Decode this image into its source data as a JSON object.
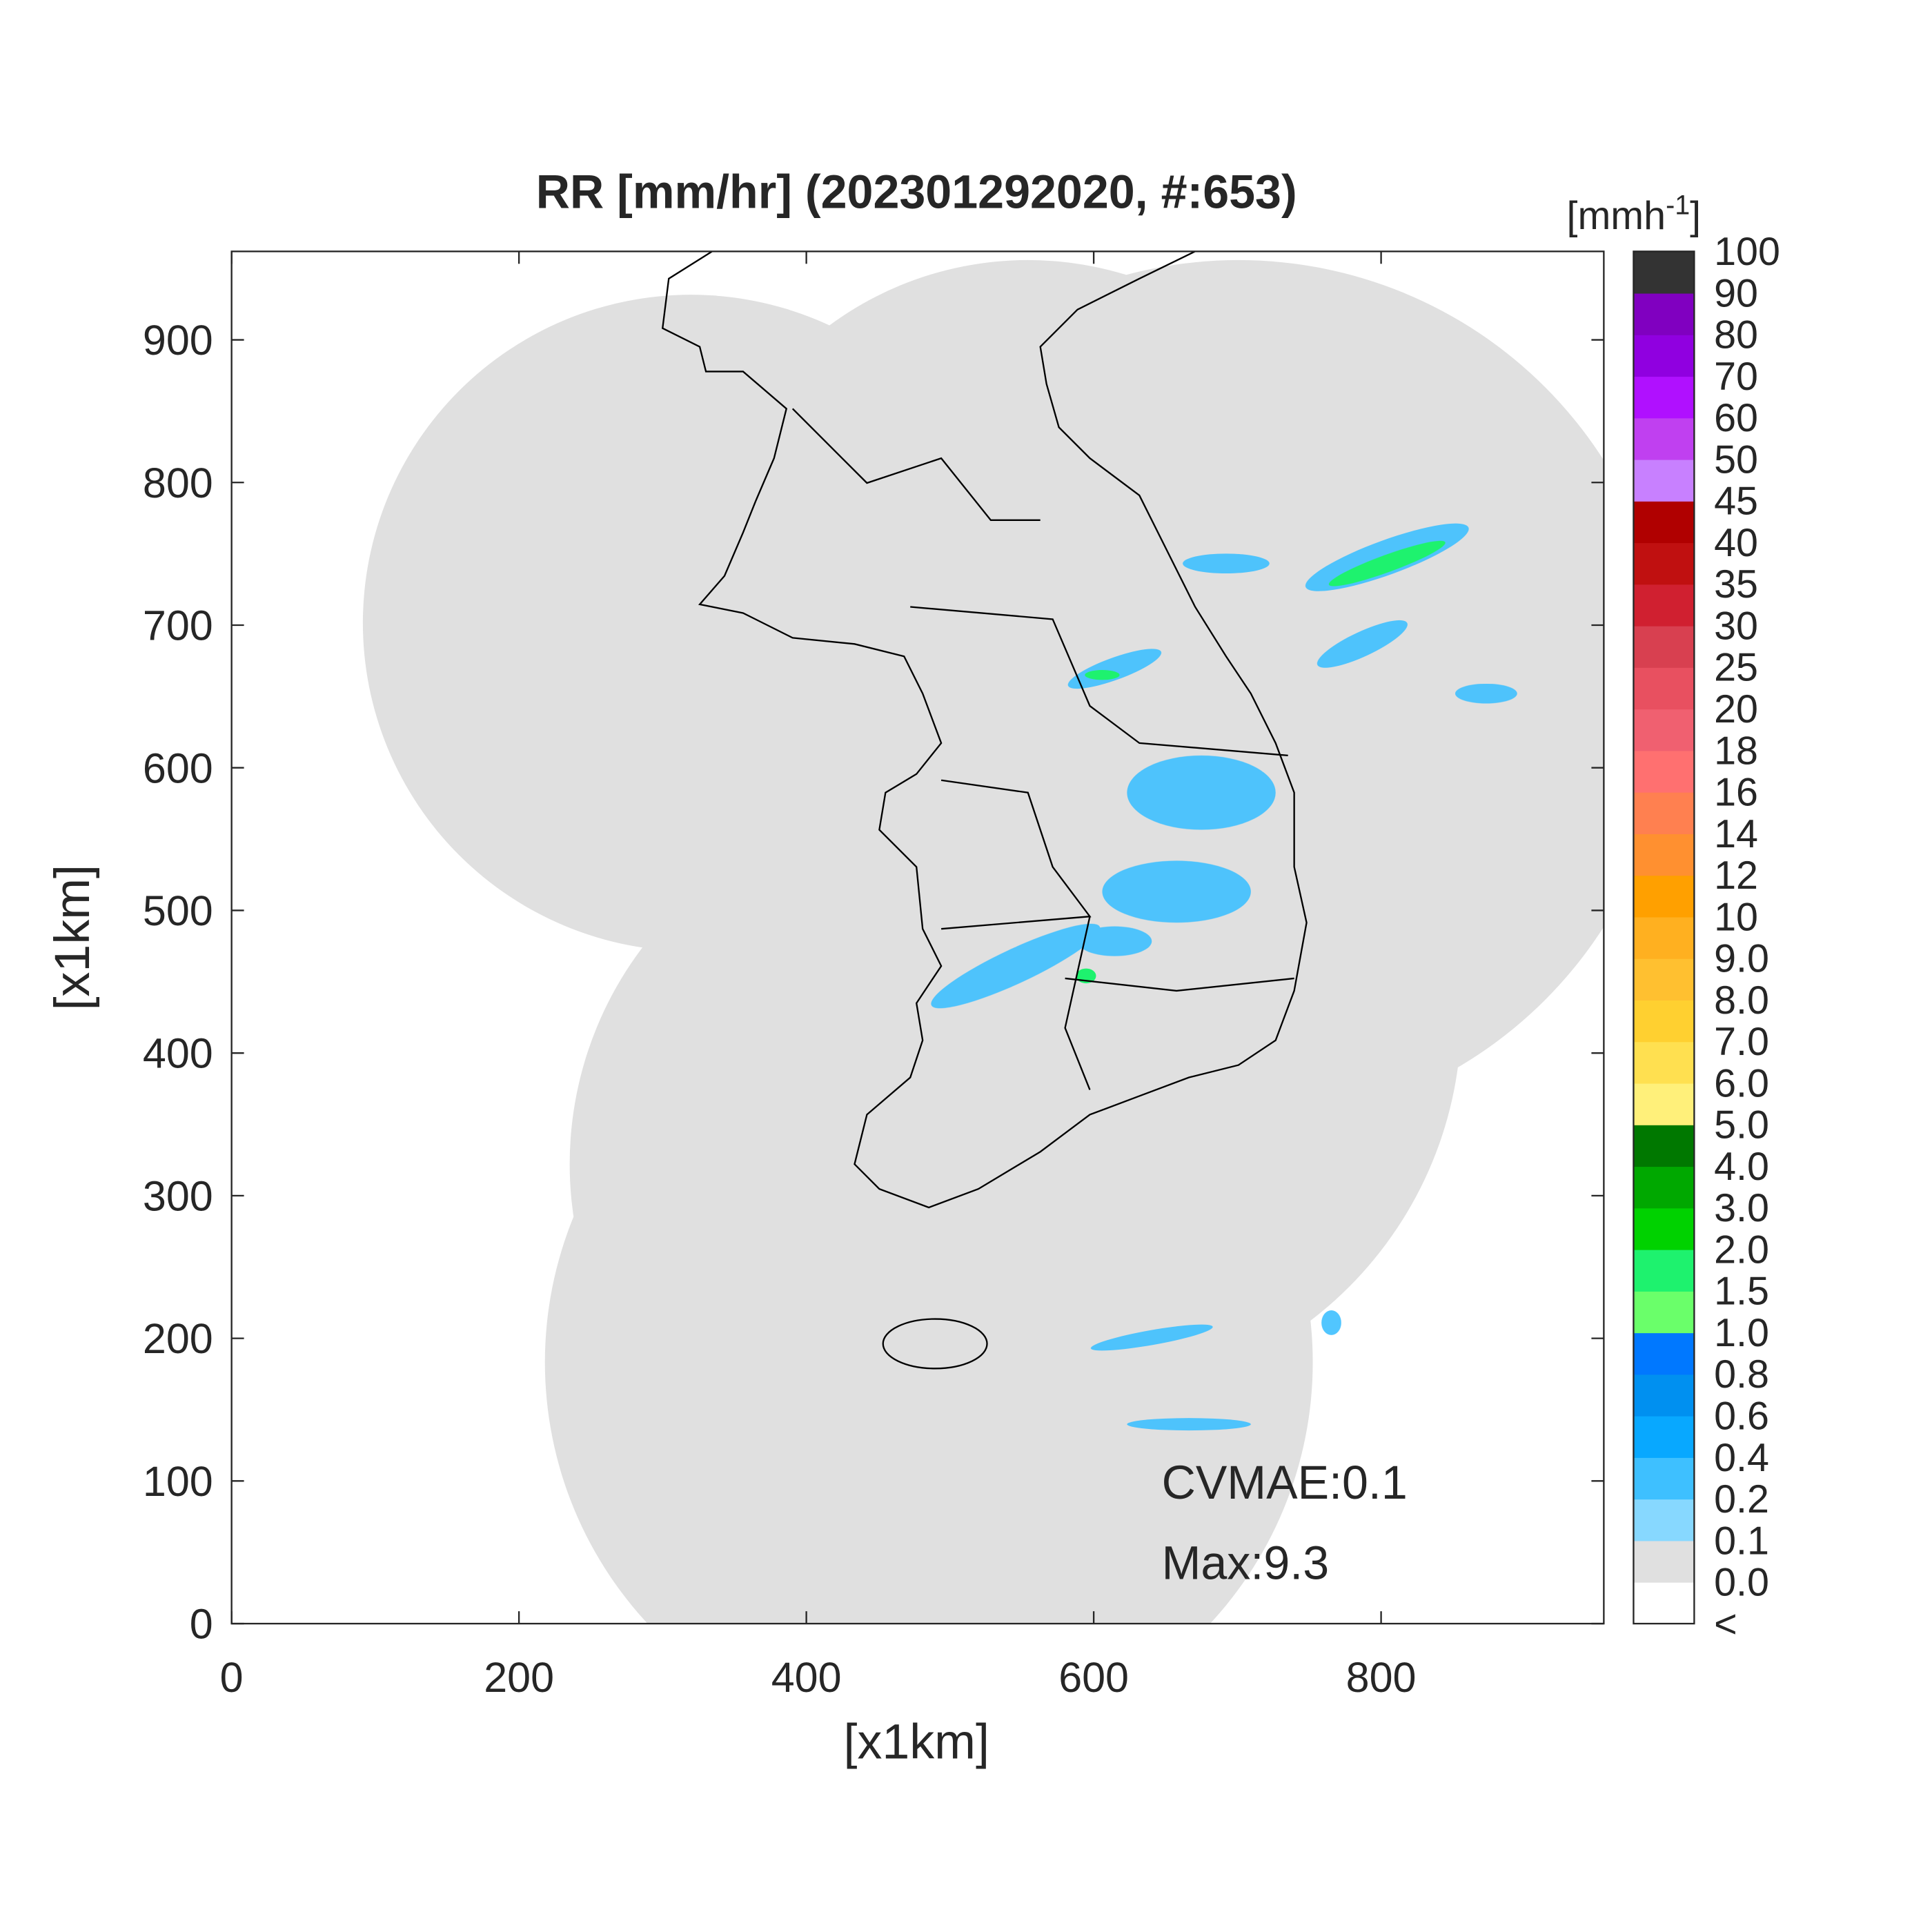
{
  "chart_data": {
    "type": "map",
    "title": "RR [mm/hr] (202301292020, #:653)",
    "xlabel": "[x1km]",
    "ylabel": "[x1km]",
    "xlim": [
      0,
      955
    ],
    "ylim": [
      0,
      962
    ],
    "xticks": [
      0,
      200,
      400,
      600,
      800
    ],
    "yticks": [
      0,
      100,
      200,
      300,
      400,
      500,
      600,
      700,
      800,
      900
    ],
    "annotations": [
      "CVMAE:0.1",
      "Max:9.3"
    ],
    "colorbar": {
      "title": {
        "prefix": "[mmh",
        "exponent": "-1",
        "suffix": "]"
      },
      "labels": [
        "<",
        "0.0",
        "0.1",
        "0.2",
        "0.4",
        "0.6",
        "0.8",
        "1.0",
        "1.5",
        "2.0",
        "3.0",
        "4.0",
        "5.0",
        "6.0",
        "7.0",
        "8.0",
        "9.0",
        "10",
        "12",
        "14",
        "16",
        "18",
        "20",
        "25",
        "30",
        "35",
        "40",
        "45",
        "50",
        "60",
        "70",
        "80",
        "90",
        "100"
      ],
      "colors": [
        "#ffffff",
        "#e0e0e0",
        "#87d8ff",
        "#3ec0ff",
        "#08a8ff",
        "#0090f0",
        "#0078ff",
        "#6aff6a",
        "#1ef26e",
        "#00d200",
        "#00a800",
        "#007800",
        "#fff07a",
        "#ffe050",
        "#ffd030",
        "#ffc030",
        "#ffb020",
        "#ffa000",
        "#ff9030",
        "#ff8050",
        "#ff7070",
        "#f06070",
        "#e85060",
        "#d84050",
        "#d02030",
        "#c01010",
        "#b00000",
        "#c880ff",
        "#c040f0",
        "#b010ff",
        "#9000e0",
        "#8000c0",
        "#333333"
      ]
    }
  }
}
